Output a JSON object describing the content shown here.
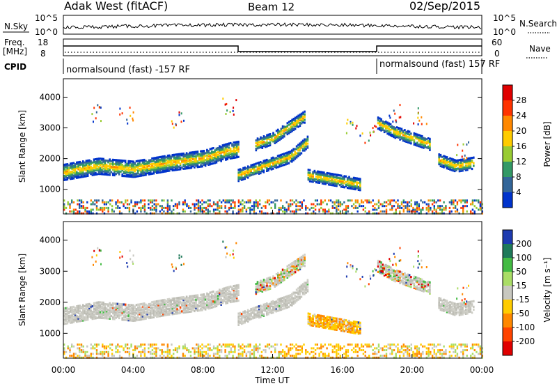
{
  "header": {
    "title": "Adak West (fitACF)",
    "beam": "Beam 12",
    "date": "02/Sep/2015"
  },
  "top_panel": {
    "left_label": "N.Sky",
    "left_ticks": [
      "10^5",
      "10^0"
    ],
    "right_ticks": [
      "10^5",
      "10^0"
    ],
    "right_label": "N.Search"
  },
  "freq_panel": {
    "left_label_1": "Freq.",
    "left_label_2": "[MHz]",
    "left_ticks": [
      "18",
      "8"
    ],
    "right_ticks": [
      "60",
      "0"
    ],
    "right_label": "Nave"
  },
  "cpid_panel": {
    "label": "CPID",
    "left_program": "normalsound (fast) -157 RF",
    "right_program": "normalsound (fast) 157 RF"
  },
  "power_panel": {
    "ylabel": "Slant Range [km]",
    "cbar_label": "Power [dB]",
    "cbar_ticks": [
      "28",
      "24",
      "20",
      "16",
      "12",
      "8",
      "4"
    ],
    "cbar_colors": [
      "#e00000",
      "#ff3300",
      "#ff8800",
      "#ffcc00",
      "#99cc33",
      "#339966",
      "#336699",
      "#0033cc"
    ]
  },
  "velocity_panel": {
    "ylabel": "Slant Range [km]",
    "cbar_label": "Velocity [m s⁻¹]",
    "cbar_ticks": [
      "200",
      "100",
      "50",
      "15",
      "-15",
      "-50",
      "-100",
      "-200"
    ],
    "cbar_colors": [
      "#1e3bb0",
      "#1f7a5a",
      "#44bb44",
      "#aadd66",
      "#c8c8c0",
      "#ffcc00",
      "#ff8800",
      "#ff4400",
      "#e00000"
    ]
  },
  "xaxis": {
    "label": "Time UT",
    "ticks": [
      "00:00",
      "04:00",
      "08:00",
      "12:00",
      "16:00",
      "20:00",
      "00:00"
    ]
  },
  "chart_data": [
    {
      "type": "heatmap",
      "title": "Power",
      "xlabel": "Time UT",
      "ylabel": "Slant Range [km]",
      "xlim": [
        0,
        24
      ],
      "ylim": [
        200,
        4600
      ],
      "yticks": [
        1000,
        2000,
        3000,
        4000
      ],
      "color_scale": [
        0,
        30
      ],
      "band_tracks": [
        {
          "x": [
            0,
            2,
            4,
            6,
            8,
            9.5,
            10
          ],
          "y": [
            1600,
            1800,
            1700,
            1900,
            2050,
            2300,
            2350
          ]
        },
        {
          "x": [
            10,
            11,
            12,
            13,
            14
          ],
          "y": [
            1500,
            1700,
            1900,
            2100,
            2600
          ]
        },
        {
          "x": [
            11,
            12,
            13,
            13.8
          ],
          "y": [
            2500,
            2700,
            3100,
            3400
          ]
        },
        {
          "x": [
            14,
            15,
            16,
            17
          ],
          "y": [
            1500,
            1400,
            1300,
            1200
          ]
        },
        {
          "x": [
            18,
            19,
            20,
            21
          ],
          "y": [
            3200,
            2900,
            2700,
            2500
          ]
        },
        {
          "x": [
            21.5,
            22.5,
            23.5
          ],
          "y": [
            2000,
            1800,
            1900
          ]
        }
      ]
    },
    {
      "type": "heatmap",
      "title": "Velocity",
      "xlabel": "Time UT",
      "ylabel": "Slant Range [km]",
      "xlim": [
        0,
        24
      ],
      "ylim": [
        200,
        4600
      ],
      "yticks": [
        1000,
        2000,
        3000,
        4000
      ],
      "color_scale": [
        -200,
        200
      ]
    }
  ]
}
